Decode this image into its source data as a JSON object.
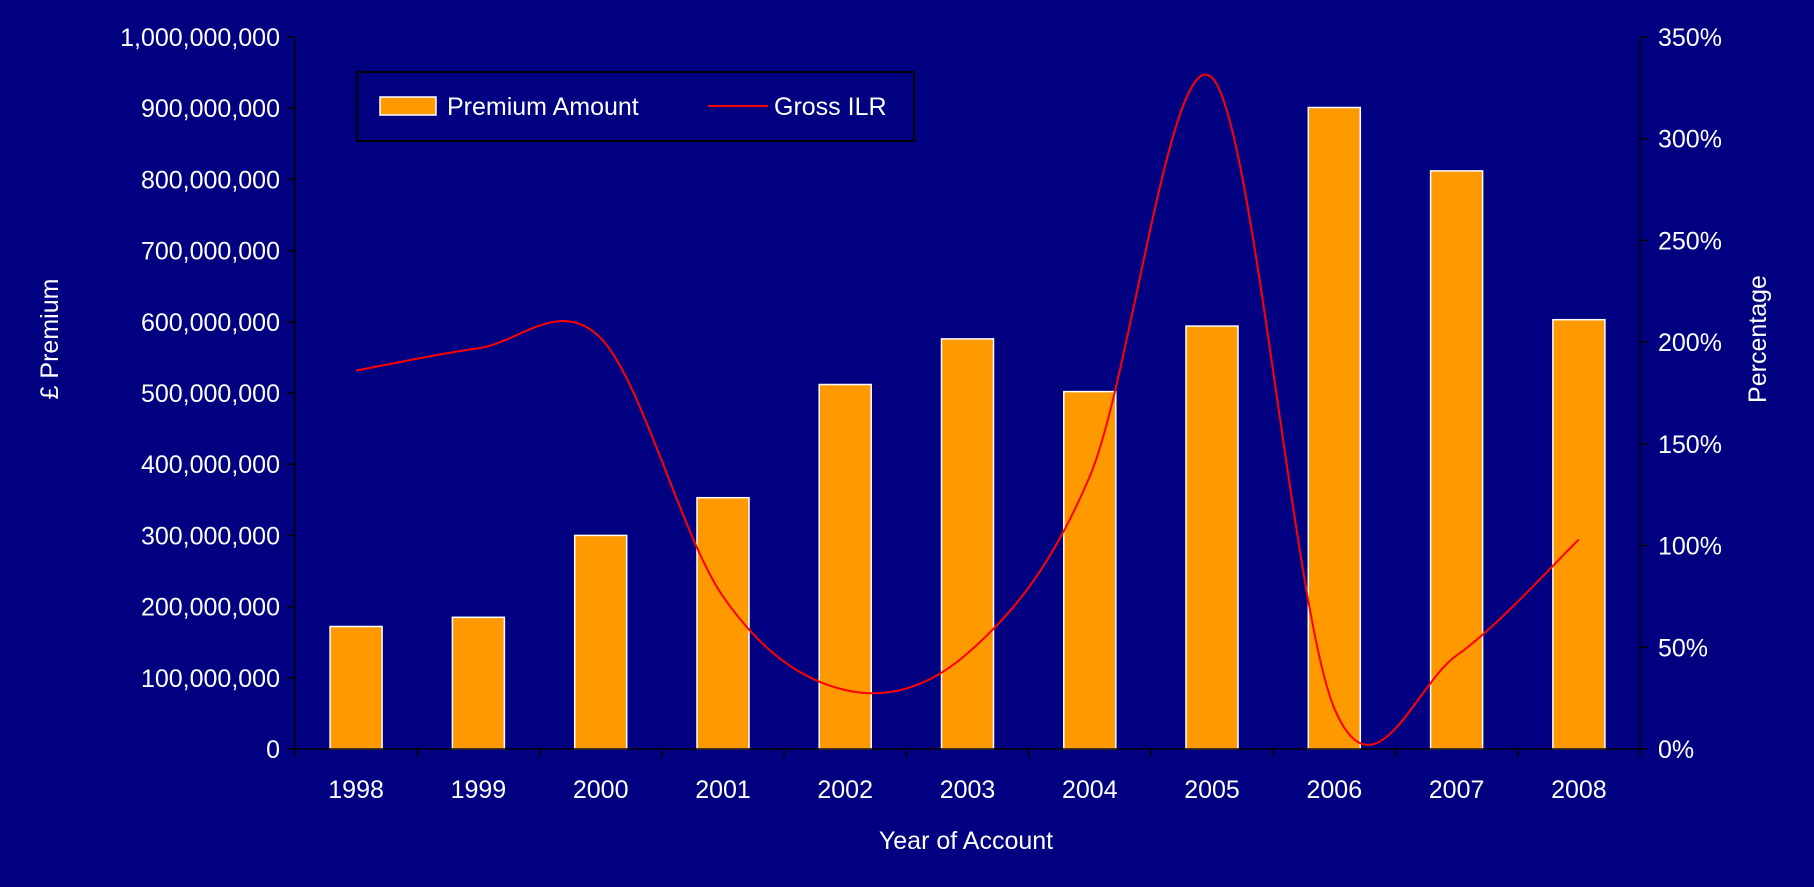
{
  "colors": {
    "background": "#000080",
    "bar_fill": "#FF9900",
    "bar_stroke": "#ffffff",
    "line": "#FF0000",
    "axis": "#000000",
    "text": "#ffffff"
  },
  "chart_data": {
    "type": "bar",
    "categories": [
      "1998",
      "1999",
      "2000",
      "2001",
      "2002",
      "2003",
      "2004",
      "2005",
      "2006",
      "2007",
      "2008"
    ],
    "series": [
      {
        "name": "Premium Amount",
        "type": "bar",
        "axis": "left",
        "values": [
          172000000,
          185000000,
          300000000,
          353000000,
          512000000,
          576000000,
          502000000,
          594000000,
          901000000,
          812000000,
          603000000
        ]
      },
      {
        "name": "Gross ILR",
        "type": "line",
        "axis": "right",
        "smooth": true,
        "values": [
          1.86,
          1.97,
          2.02,
          0.75,
          0.29,
          0.47,
          1.34,
          3.3,
          0.2,
          0.46,
          1.03
        ]
      }
    ],
    "xlabel": "Year of Account",
    "ylabel_left": "£ Premium",
    "ylabel_right": "Percentage",
    "ylim_left": [
      0,
      1000000000
    ],
    "ylim_right": [
      0,
      3.5
    ],
    "yticks_left": [
      "0",
      "100,000,000",
      "200,000,000",
      "300,000,000",
      "400,000,000",
      "500,000,000",
      "600,000,000",
      "700,000,000",
      "800,000,000",
      "900,000,000",
      "1,000,000,000"
    ],
    "yticks_right": [
      "0%",
      "50%",
      "100%",
      "150%",
      "200%",
      "250%",
      "300%",
      "350%"
    ],
    "grid": false,
    "legend": {
      "placement": "top-left",
      "entries": [
        "Premium Amount",
        "Gross ILR"
      ]
    }
  }
}
